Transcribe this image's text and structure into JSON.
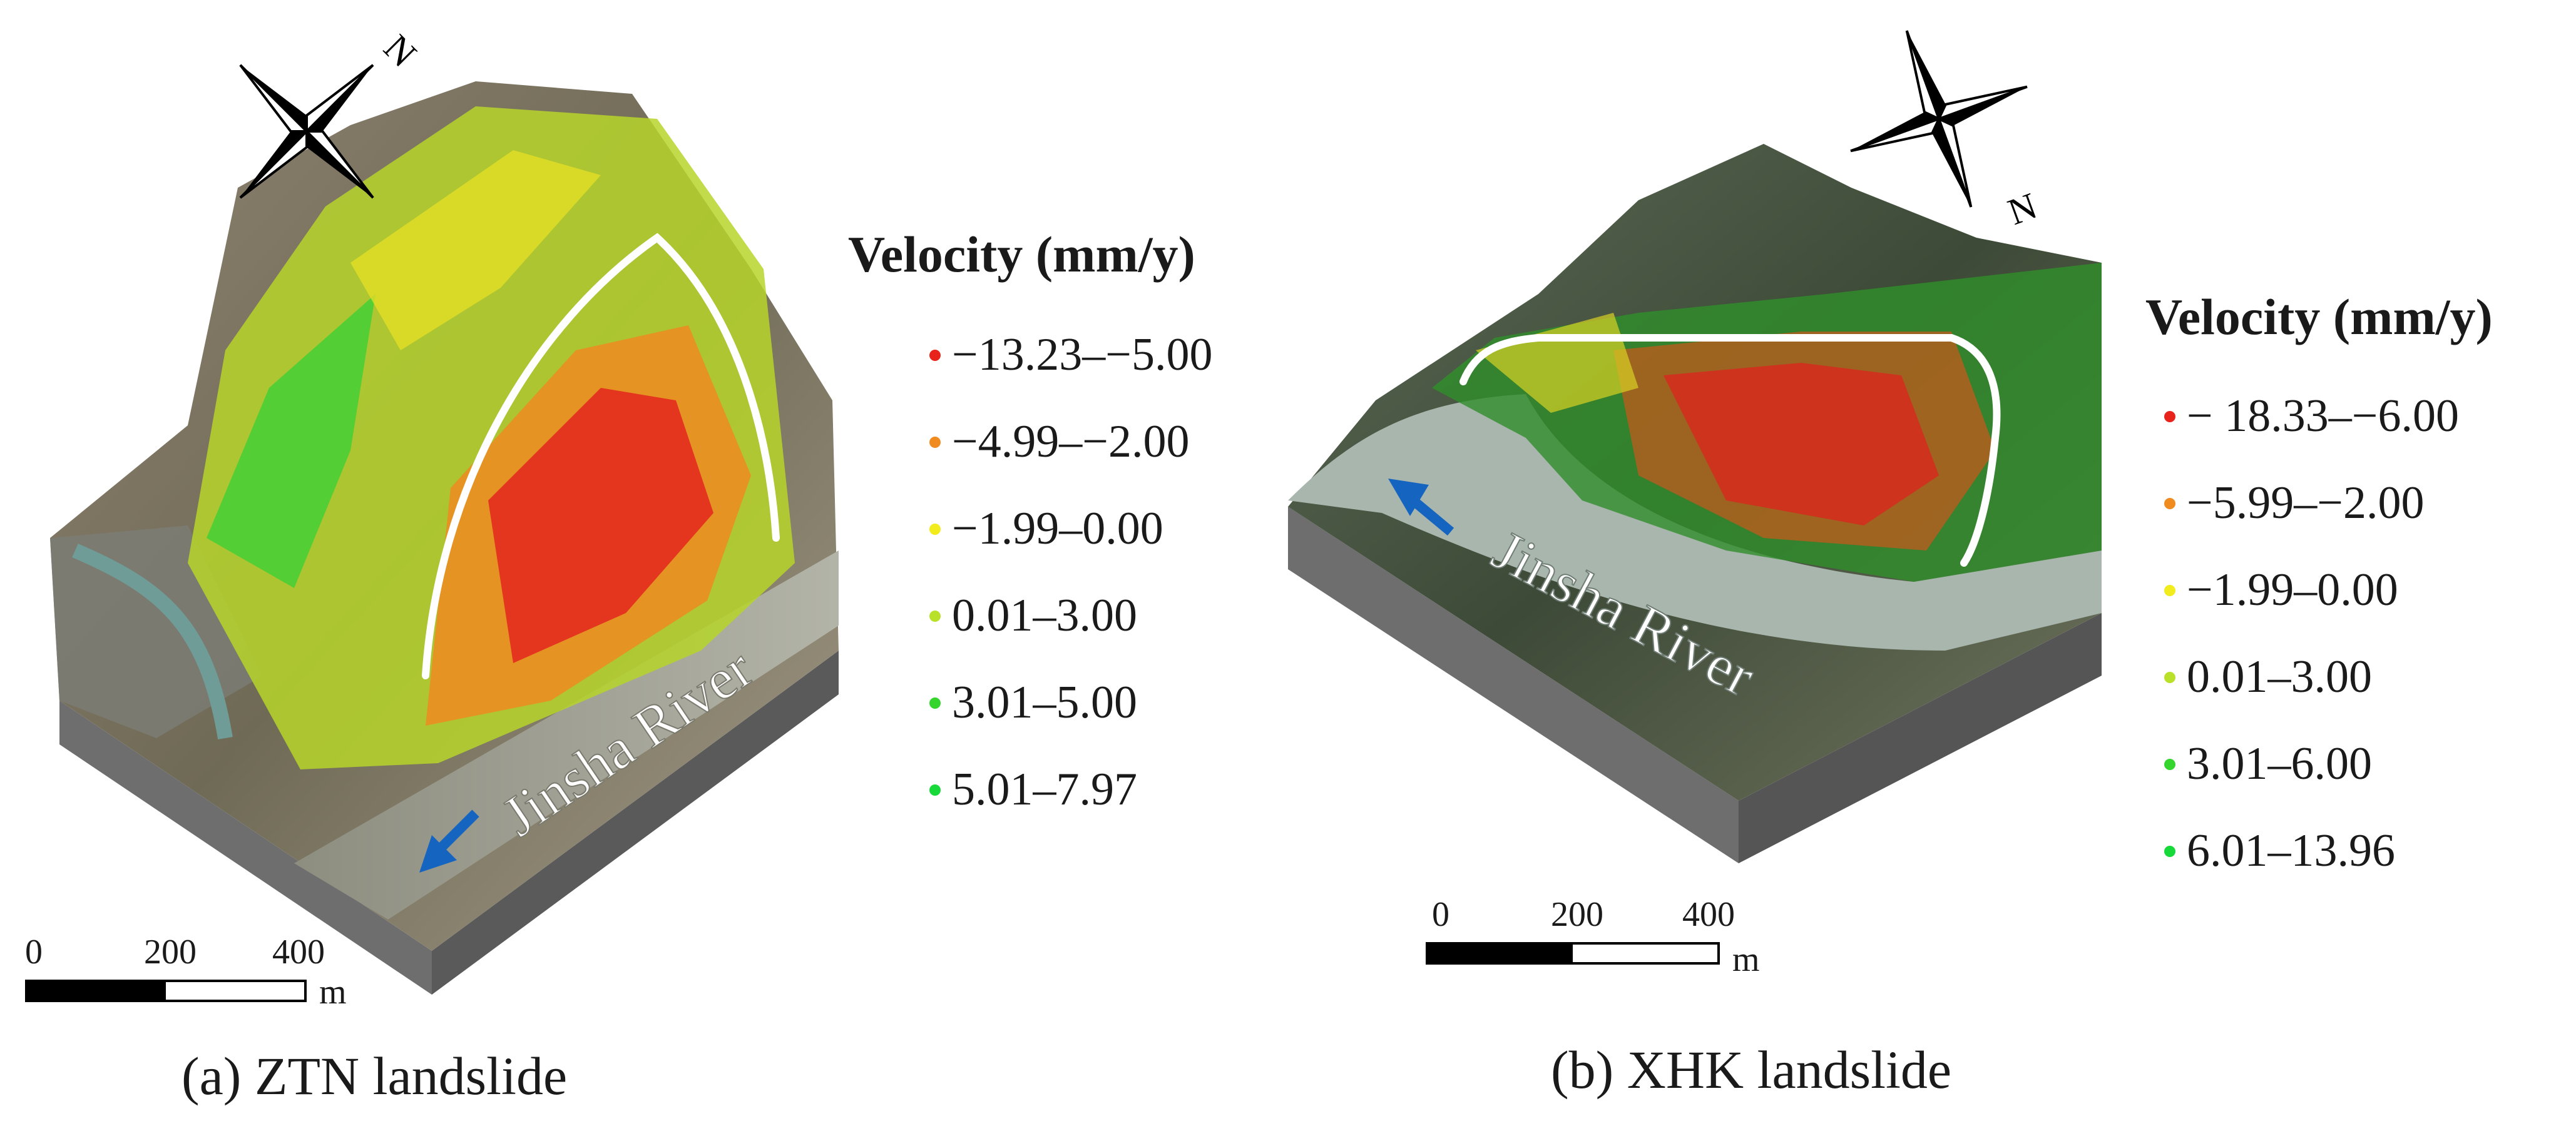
{
  "panels": [
    {
      "id": "a",
      "caption": "(a) ZTN landslide",
      "river_label": "Jinsha River",
      "north_label": "N",
      "legend": {
        "title": "Velocity (mm/y)",
        "items": [
          {
            "label": "−13.23–−5.00",
            "color": "#e8231c"
          },
          {
            "label": "−4.99–−2.00",
            "color": "#f08b1f"
          },
          {
            "label": "−1.99–0.00",
            "color": "#f2ec1c"
          },
          {
            "label": "0.01–3.00",
            "color": "#b9e12a"
          },
          {
            "label": "3.01–5.00",
            "color": "#35d52e"
          },
          {
            "label": "5.01–7.97",
            "color": "#18d93a"
          }
        ]
      },
      "scale": {
        "ticks": [
          "0",
          "200",
          "400"
        ],
        "unit": "m"
      }
    },
    {
      "id": "b",
      "caption": "(b) XHK landslide",
      "river_label": "Jinsha River",
      "north_label": "N",
      "legend": {
        "title": "Velocity (mm/y)",
        "items": [
          {
            "label": "− 18.33–−6.00",
            "color": "#e8231c"
          },
          {
            "label": "−5.99–−2.00",
            "color": "#f08b1f"
          },
          {
            "label": "−1.99–0.00",
            "color": "#f2ec1c"
          },
          {
            "label": "0.01–3.00",
            "color": "#b9e12a"
          },
          {
            "label": "3.01–6.00",
            "color": "#35d52e"
          },
          {
            "label": "6.01–13.96",
            "color": "#18d93a"
          }
        ]
      },
      "scale": {
        "ticks": [
          "0",
          "200",
          "400"
        ],
        "unit": "m"
      }
    }
  ]
}
